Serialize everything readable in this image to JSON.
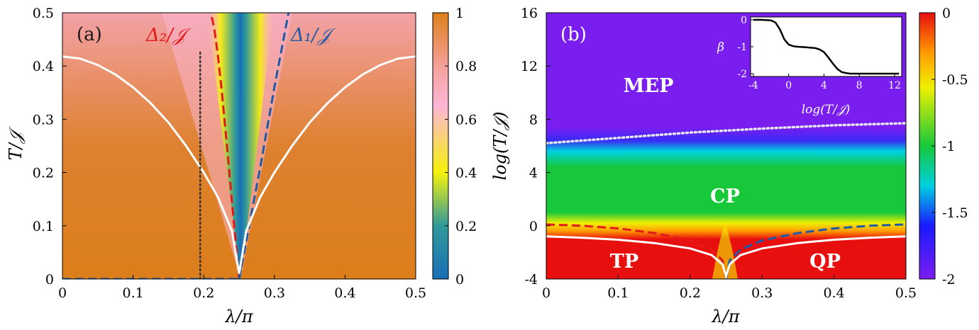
{
  "chart_data": [
    {
      "type": "heatmap",
      "panel": "(a)",
      "xlabel": "λ/π",
      "ylabel": "T/𝒥",
      "xlim": [
        0,
        0.5
      ],
      "ylim": [
        0,
        0.5
      ],
      "xticks": [
        "0",
        "0.1",
        "0.2",
        "0.3",
        "0.4",
        "0.5"
      ],
      "yticks": [
        "0",
        "0.1",
        "0.2",
        "0.3",
        "0.4",
        "0.5"
      ],
      "colorbar": {
        "range": [
          0,
          1
        ],
        "ticks": [
          "0",
          "0.2",
          "0.4",
          "0.6",
          "0.8",
          "1"
        ],
        "colors": [
          "#1a6fb5",
          "#2f9a9a",
          "#f5f20a",
          "#fdb6d6",
          "#f4a19a",
          "#de7f1a"
        ]
      },
      "annotations": [
        {
          "text": "Δ₂/𝒥",
          "color": "#e31a1c"
        },
        {
          "text": "Δ₁/𝒥",
          "color": "#1f5aa6"
        }
      ],
      "series": [
        {
          "name": "Δ₂/𝒥",
          "style": "dashed",
          "color": "#e31a1c",
          "x": [
            0.25,
            0.245,
            0.24,
            0.235,
            0.23,
            0.225,
            0.22,
            0.215,
            0.21
          ],
          "y": [
            0.0,
            0.072,
            0.145,
            0.218,
            0.29,
            0.36,
            0.42,
            0.47,
            0.5
          ]
        },
        {
          "name": "Δ₁/𝒥",
          "style": "dashed",
          "color": "#1f5aa6",
          "x": [
            0.25,
            0.26,
            0.27,
            0.28,
            0.29,
            0.3,
            0.31,
            0.32
          ],
          "y": [
            0.0,
            0.07,
            0.14,
            0.21,
            0.285,
            0.36,
            0.43,
            0.5
          ]
        },
        {
          "style": "solid",
          "color": "#ffffff",
          "x": [
            0.0,
            0.025,
            0.05,
            0.075,
            0.1,
            0.125,
            0.15,
            0.175,
            0.2,
            0.22,
            0.24,
            0.25,
            0.26,
            0.28,
            0.3,
            0.325,
            0.35,
            0.375,
            0.4,
            0.425,
            0.45,
            0.475,
            0.5
          ],
          "y": [
            0.418,
            0.414,
            0.402,
            0.384,
            0.36,
            0.33,
            0.294,
            0.25,
            0.2,
            0.154,
            0.09,
            0.01,
            0.09,
            0.154,
            0.2,
            0.25,
            0.294,
            0.33,
            0.36,
            0.384,
            0.402,
            0.414,
            0.418
          ]
        },
        {
          "style": "dotted",
          "color": "#333333",
          "x": [
            0.195,
            0.195
          ],
          "y": [
            0.0,
            0.43
          ]
        },
        {
          "style": "dashed",
          "color": "#1f5aa6",
          "x": [
            0.0,
            0.25
          ],
          "y": [
            0.0,
            0.0
          ]
        }
      ]
    },
    {
      "type": "heatmap",
      "panel": "(b)",
      "xlabel": "λ/π",
      "ylabel": "log(T/𝒥)",
      "xlim": [
        0,
        0.5
      ],
      "ylim": [
        -4,
        16
      ],
      "xticks": [
        "0",
        "0.1",
        "0.2",
        "0.3",
        "0.4",
        "0.5"
      ],
      "yticks": [
        "-4",
        "0",
        "4",
        "8",
        "12",
        "16"
      ],
      "colorbar": {
        "range": [
          -2,
          0
        ],
        "ticks": [
          "0",
          "-0.5",
          "-1",
          "-1.5",
          "-2"
        ],
        "colors": [
          "#7a1ef0",
          "#1a1aff",
          "#00d0e0",
          "#17c93a",
          "#f0f000",
          "#ff9a00",
          "#e80f0f"
        ]
      },
      "regions": [
        "MEP",
        "CP",
        "TP",
        "QP"
      ],
      "series": [
        {
          "style": "dotted",
          "color": "#e6e6f0",
          "x": [
            0.0,
            0.1,
            0.2,
            0.3,
            0.4,
            0.5
          ],
          "y": [
            6.2,
            6.6,
            7.0,
            7.3,
            7.55,
            7.7
          ]
        },
        {
          "style": "dashed",
          "color": "#e31a1c",
          "x": [
            0.0,
            0.05,
            0.1,
            0.15,
            0.2,
            0.23,
            0.245,
            0.25
          ],
          "y": [
            0.1,
            0.0,
            -0.2,
            -0.55,
            -1.1,
            -1.8,
            -2.6,
            -4.0
          ]
        },
        {
          "style": "dashed",
          "color": "#1f5aa6",
          "x": [
            0.25,
            0.255,
            0.27,
            0.3,
            0.35,
            0.4,
            0.45,
            0.5
          ],
          "y": [
            -4.0,
            -2.6,
            -1.8,
            -1.1,
            -0.55,
            -0.2,
            0.0,
            0.1
          ]
        },
        {
          "style": "solid",
          "color": "#ffffff",
          "x": [
            0.0,
            0.05,
            0.1,
            0.15,
            0.2,
            0.23,
            0.245,
            0.25,
            0.255,
            0.27,
            0.3,
            0.35,
            0.4,
            0.45,
            0.5
          ],
          "y": [
            -0.8,
            -0.9,
            -1.05,
            -1.3,
            -1.7,
            -2.2,
            -2.9,
            -3.8,
            -2.9,
            -2.2,
            -1.7,
            -1.3,
            -1.05,
            -0.9,
            -0.8
          ]
        }
      ],
      "inset": {
        "type": "line",
        "xlabel": "log(T/𝒥)",
        "ylabel": "β",
        "xlim": [
          -4,
          12
        ],
        "ylim": [
          -2,
          0
        ],
        "xticks": [
          "-4",
          "0",
          "4",
          "8",
          "12"
        ],
        "yticks": [
          "0",
          "-1",
          "-2"
        ],
        "x": [
          -4,
          -3,
          -2,
          -1.5,
          -1,
          -0.5,
          0,
          0.5,
          1,
          2,
          3,
          3.5,
          4,
          4.5,
          5,
          5.5,
          6,
          6.5,
          7,
          8,
          10,
          12.5
        ],
        "y": [
          0,
          0,
          -0.02,
          -0.1,
          -0.35,
          -0.72,
          -0.92,
          -0.98,
          -1.0,
          -1.02,
          -1.05,
          -1.1,
          -1.2,
          -1.4,
          -1.62,
          -1.82,
          -1.94,
          -1.98,
          -2.0,
          -2.0,
          -2.0,
          -2.0
        ]
      }
    }
  ]
}
